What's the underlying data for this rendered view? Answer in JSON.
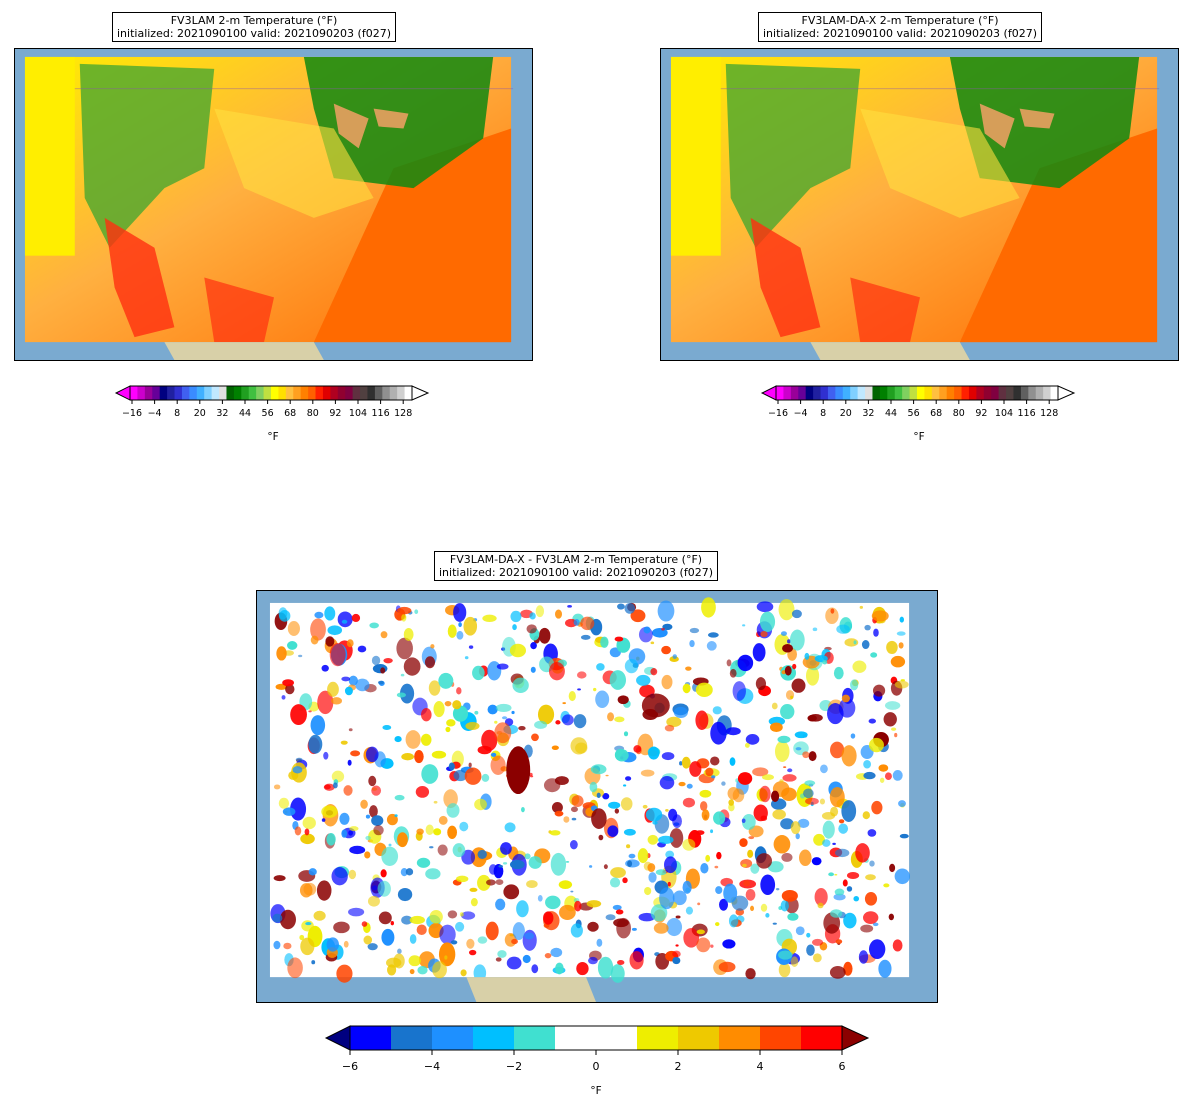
{
  "panels": [
    {
      "id": "fv3lam",
      "title_line1": "FV3LAM 2-m Temperature (°F)",
      "title_line2": "initialized: 2021090100 valid: 2021090203 (f027)",
      "colorbar": {
        "ticks": [
          "−16",
          "−4",
          "8",
          "20",
          "32",
          "44",
          "56",
          "68",
          "80",
          "92",
          "104",
          "116",
          "128"
        ],
        "unit": "°F"
      }
    },
    {
      "id": "fv3lam-da-x",
      "title_line1": "FV3LAM-DA-X 2-m Temperature (°F)",
      "title_line2": "initialized: 2021090100 valid: 2021090203 (f027)",
      "colorbar": {
        "ticks": [
          "−16",
          "−4",
          "8",
          "20",
          "32",
          "44",
          "56",
          "68",
          "80",
          "92",
          "104",
          "116",
          "128"
        ],
        "unit": "°F"
      }
    },
    {
      "id": "difference",
      "title_line1": "FV3LAM-DA-X - FV3LAM 2-m Temperature (°F)",
      "title_line2": "initialized: 2021090100 valid: 2021090203 (f027)",
      "colorbar": {
        "ticks": [
          "−6",
          "−4",
          "−2",
          "0",
          "2",
          "4",
          "6"
        ],
        "unit": "°F"
      }
    }
  ],
  "colors": {
    "ocean": "#7aaad0",
    "temp_scale": [
      "#ff00ff",
      "#cc00cc",
      "#990099",
      "#660099",
      "#000080",
      "#2020a0",
      "#3030d0",
      "#4060f0",
      "#3a8cff",
      "#40b0ff",
      "#80d0ff",
      "#c0e8ff",
      "#e0e0e0",
      "#006400",
      "#008000",
      "#20a020",
      "#40c040",
      "#80d060",
      "#c0e040",
      "#ffff00",
      "#ffe000",
      "#ffc040",
      "#ffa020",
      "#ff8000",
      "#ff6000",
      "#ff2000",
      "#e00000",
      "#b00020",
      "#900030",
      "#800040",
      "#603040",
      "#504040",
      "#303030",
      "#606060",
      "#909090",
      "#b0b0b0",
      "#d0d0d0",
      "#ffffff"
    ],
    "diff_scale": [
      "#000080",
      "#0000ff",
      "#1874cd",
      "#1e90ff",
      "#00bfff",
      "#40e0d0",
      "#ffffff",
      "#ffffff",
      "#eeee00",
      "#eec900",
      "#ff8c00",
      "#ff4500",
      "#ff0000",
      "#8b0000"
    ]
  }
}
